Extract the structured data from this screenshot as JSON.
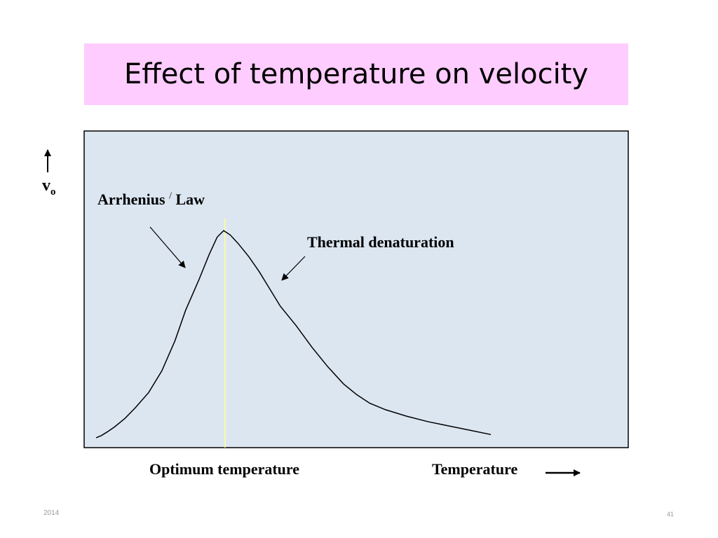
{
  "slide": {
    "title": "Effect of temperature on velocity",
    "footer_left": "2014",
    "page_number": "41"
  },
  "colors": {
    "title_bg": "#ffccff",
    "plot_bg": "#dce6f1",
    "optimum_line": "#ffff99"
  },
  "chart_data": {
    "type": "line",
    "title": "",
    "ylabel": {
      "main": "v",
      "sub": "o"
    },
    "xlabel": "Temperature",
    "y_axis_arrow": "up",
    "x_axis_arrow": "right",
    "grid": false,
    "series": [
      {
        "name": "",
        "x": [
          0,
          2,
          4,
          7,
          11,
          15,
          20,
          25,
          30,
          34,
          39,
          43,
          46,
          48.5,
          51,
          54,
          58,
          62,
          66,
          70,
          76,
          82,
          88,
          94,
          99,
          104,
          110,
          118,
          126,
          134,
          142,
          150
        ],
        "y": [
          1,
          2,
          3.5,
          6,
          10,
          15,
          22,
          32,
          46,
          60,
          74,
          86,
          94,
          97,
          95,
          91,
          85,
          78,
          70,
          62,
          53,
          43,
          34,
          26,
          21,
          17,
          14,
          11,
          8.5,
          6.5,
          4.5,
          2.5
        ]
      }
    ],
    "xlim": [
      0,
      150
    ],
    "ylim": [
      0,
      100
    ],
    "optimum_x": 49,
    "annotations": [
      {
        "text_main": "Arrhenius",
        "text_mark": "/",
        "text_end": "Law",
        "points_to": "rising-side"
      },
      {
        "text": "Thermal denaturation",
        "points_to": "falling-side"
      }
    ],
    "marker_label": "Optimum temperature"
  }
}
